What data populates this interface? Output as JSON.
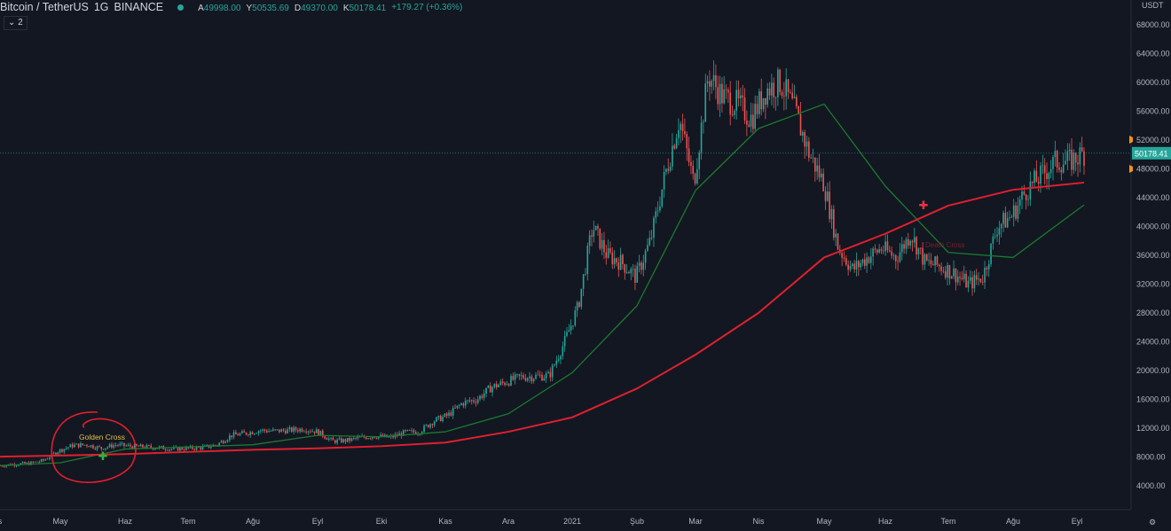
{
  "header": {
    "symbol": "Bitcoin / TetherUS",
    "interval": "1G",
    "exchange": "BINANCE",
    "open_label": "A",
    "open": "49998.00",
    "high_label": "Y",
    "high": "50535.69",
    "low_label": "D",
    "low": "49370.00",
    "close_label": "K",
    "close": "50178.41",
    "change": "+179.27 (+0.36%)",
    "indicator_toggle": "2"
  },
  "colors": {
    "background": "#131722",
    "up": "#26a69a",
    "down": "#ef5350",
    "ma_short": "#1b7a2e",
    "ma_long": "#e0202e",
    "annotation": "#e0202e"
  },
  "annotations": {
    "golden_cross": "Golden Cross",
    "death_cross": "Death Cross"
  },
  "chart_data": {
    "type": "candlestick",
    "currency": "USDT",
    "current_price": "50178.41",
    "ylim": [
      2000,
      70000
    ],
    "y_ticks": [
      "68000.00",
      "64000.00",
      "60000.00",
      "56000.00",
      "52000.00",
      "48000.00",
      "44000.00",
      "40000.00",
      "36000.00",
      "32000.00",
      "28000.00",
      "24000.00",
      "20000.00",
      "16000.00",
      "12000.00",
      "8000.00",
      "4000.00"
    ],
    "x_ticks": [
      "s",
      "May",
      "Haz",
      "Tem",
      "Ağu",
      "Eyl",
      "Eki",
      "Kas",
      "Ara",
      "2021",
      "Şub",
      "Mar",
      "Nis",
      "May",
      "Haz",
      "Tem",
      "Ağu",
      "Eyl"
    ],
    "weekly_close": [
      6800,
      7000,
      7100,
      7500,
      8800,
      9600,
      9700,
      9200,
      9700,
      9500,
      9400,
      9300,
      9100,
      9200,
      9300,
      9700,
      11000,
      11300,
      11700,
      11600,
      11700,
      11900,
      11500,
      10200,
      10300,
      10700,
      10900,
      10700,
      11400,
      11500,
      13000,
      13800,
      15500,
      16000,
      17700,
      18400,
      19100,
      19200,
      19300,
      23700,
      28900,
      40000,
      36000,
      35000,
      33000,
      38000,
      47000,
      55000,
      46000,
      61000,
      58000,
      57000,
      55000,
      59000,
      60000,
      56000,
      50000,
      46000,
      37000,
      34000,
      35700,
      37000,
      35700,
      39000,
      35000,
      34500,
      33500,
      32000,
      33000,
      40000,
      41500,
      45000,
      47000,
      49000,
      49000,
      50178
    ],
    "series": [
      {
        "label": "ma_short",
        "monthly": [
          6800,
          7200,
          9100,
          9400,
          9700,
          11000,
          10800,
          11500,
          14000,
          19700,
          29000,
          45000,
          53600,
          57000,
          45600,
          36400,
          35700,
          43000
        ]
      },
      {
        "label": "ma_long",
        "monthly": [
          8050,
          8200,
          8400,
          8700,
          9000,
          9200,
          9500,
          10000,
          11500,
          13500,
          17500,
          22200,
          28000,
          35700,
          39000,
          42900,
          45100,
          46100
        ]
      }
    ]
  }
}
